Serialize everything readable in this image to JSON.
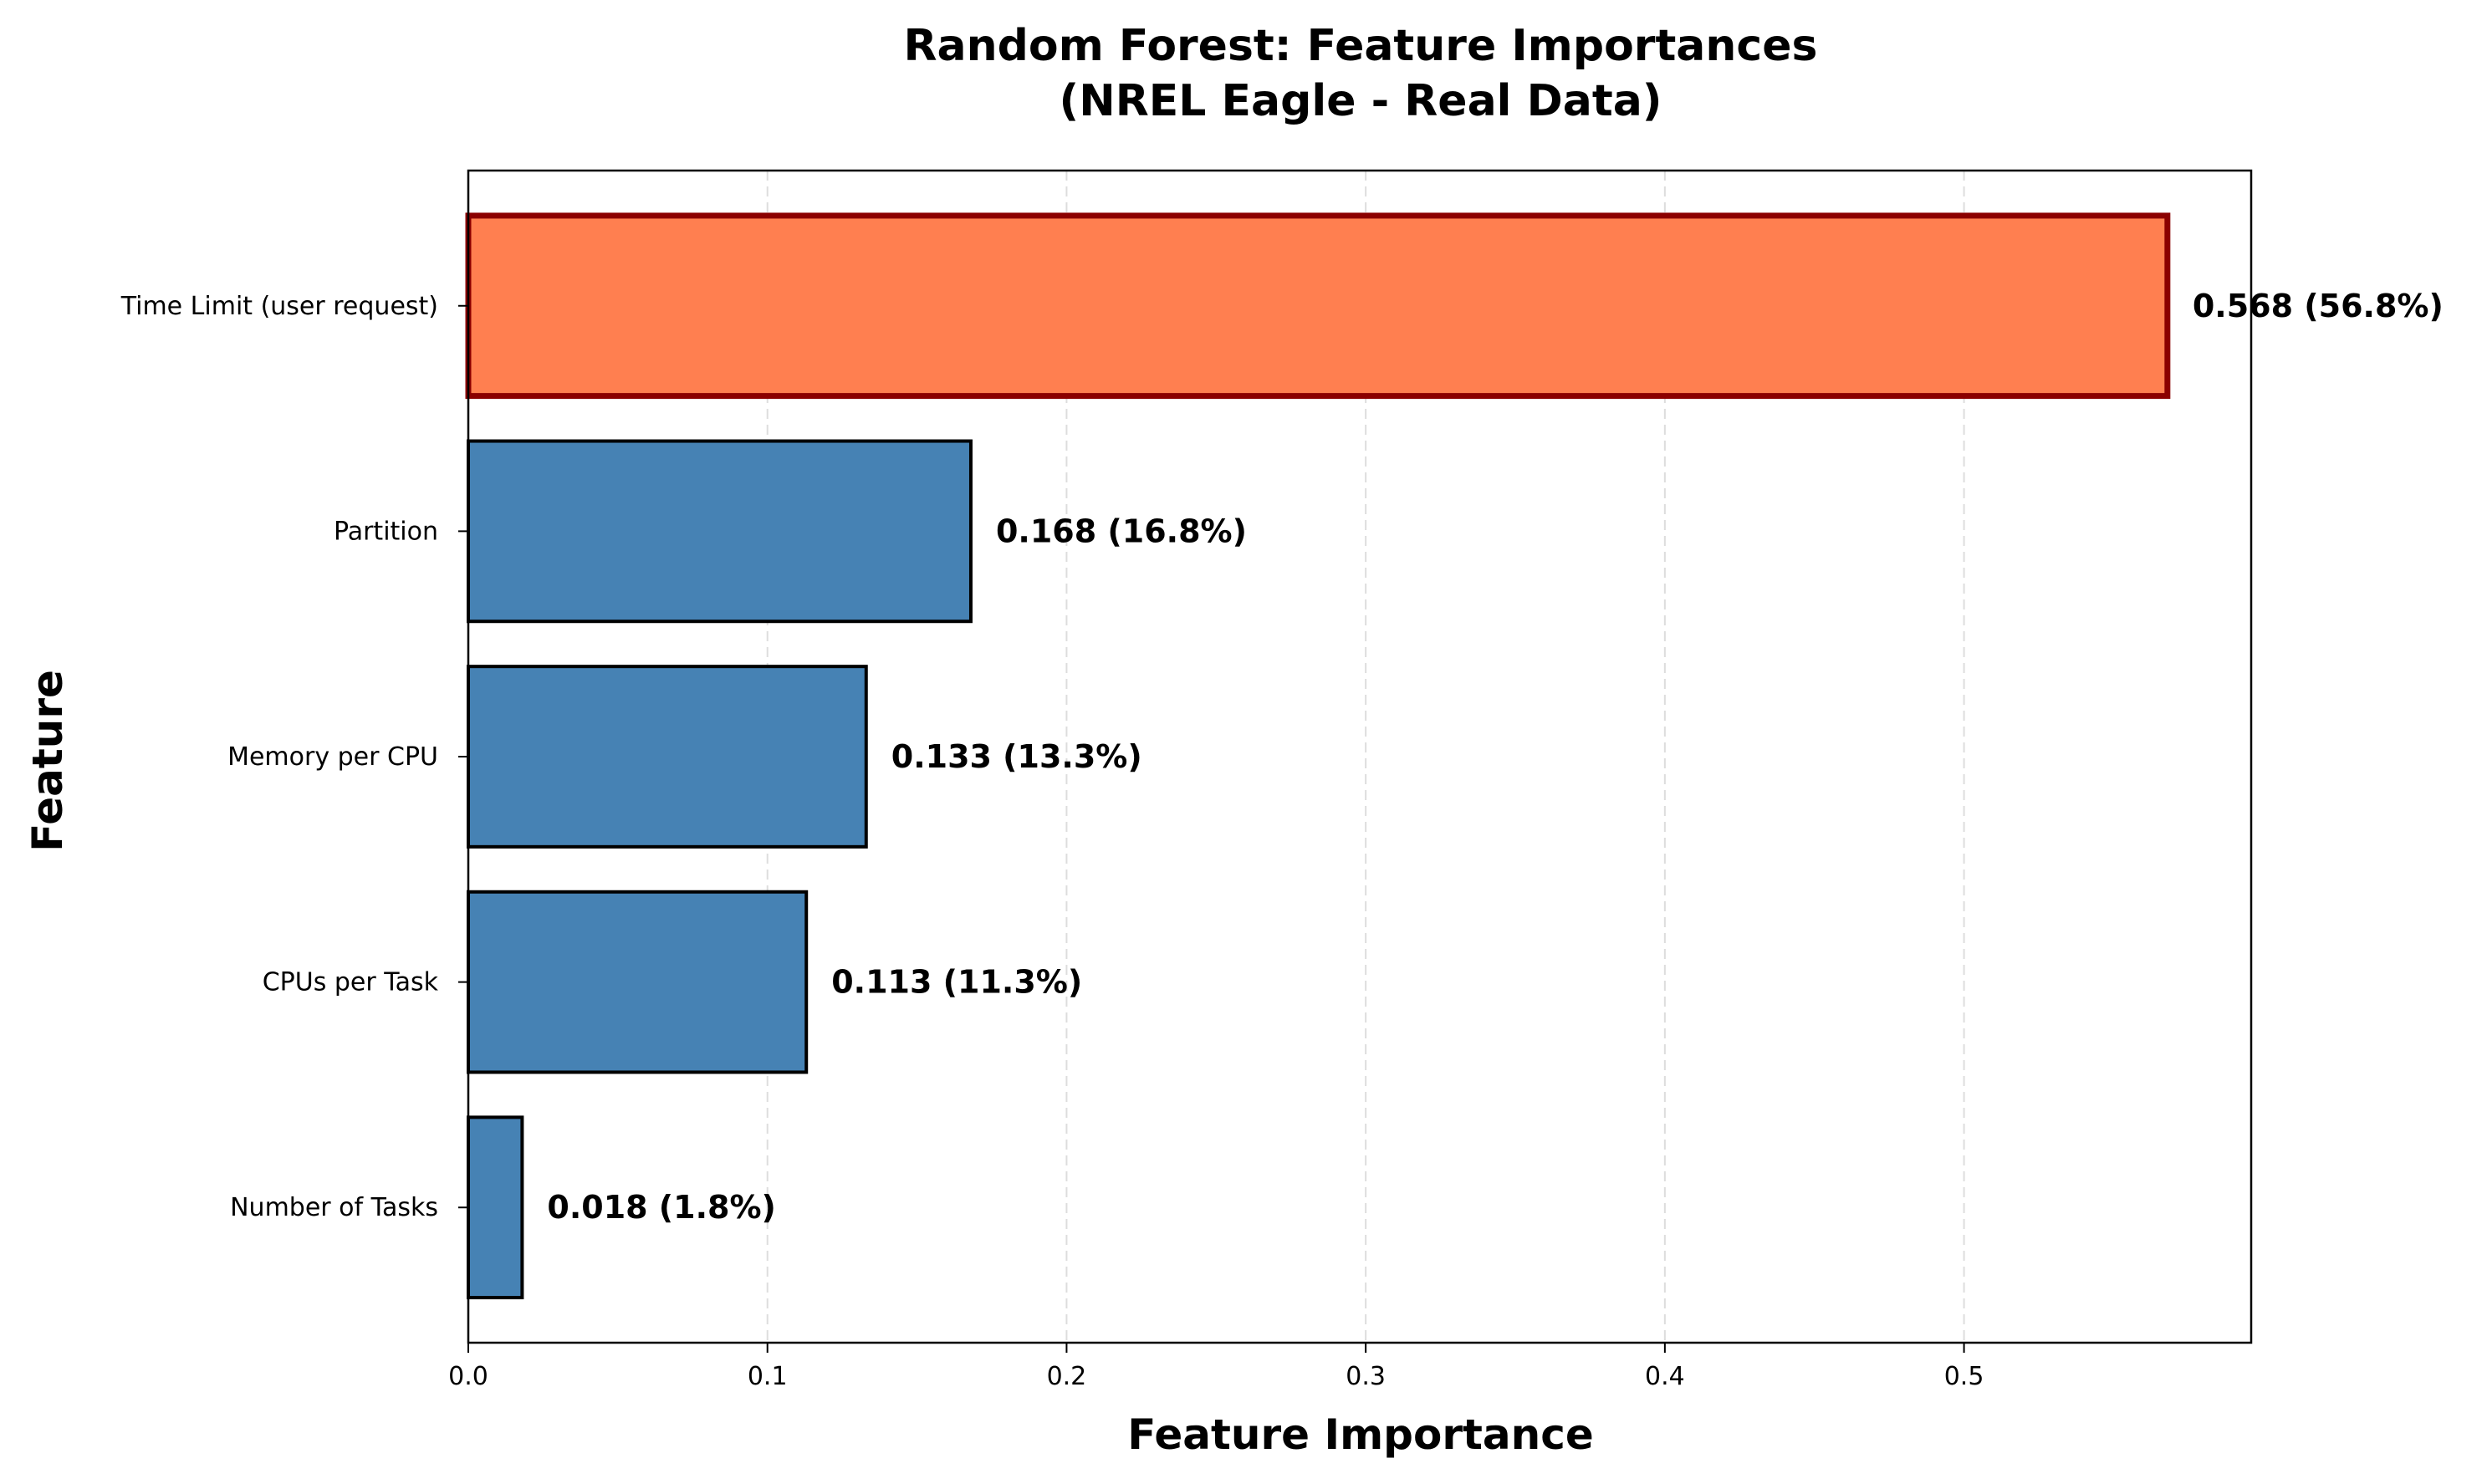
{
  "chart_data": {
    "type": "bar",
    "orientation": "horizontal",
    "title": "Random Forest: Feature Importances",
    "subtitle": "(NREL Eagle - Real Data)",
    "xlabel": "Feature Importance",
    "ylabel": "Feature",
    "categories": [
      "Time Limit (user request)",
      "Partition",
      "Memory per CPU",
      "CPUs per Task",
      "Number of Tasks"
    ],
    "values": [
      0.568,
      0.168,
      0.133,
      0.113,
      0.018
    ],
    "data_labels": [
      "0.568 (56.8%)",
      "0.168 (16.8%)",
      "0.133 (13.3%)",
      "0.113 (11.3%)",
      "0.018 (1.8%)"
    ],
    "xlim": [
      0,
      0.596
    ],
    "xticks": [
      0.0,
      0.1,
      0.2,
      0.3,
      0.4,
      0.5
    ],
    "xtick_labels": [
      "0.0",
      "0.1",
      "0.2",
      "0.3",
      "0.4",
      "0.5"
    ],
    "grid": "x dashed",
    "colors": {
      "highlight_fill": "#FF7F50",
      "highlight_edge": "#8B0000",
      "bar_fill": "#4682B4",
      "bar_edge": "#000000",
      "grid": "#DDDDDD"
    },
    "highlighted_index": 0
  }
}
